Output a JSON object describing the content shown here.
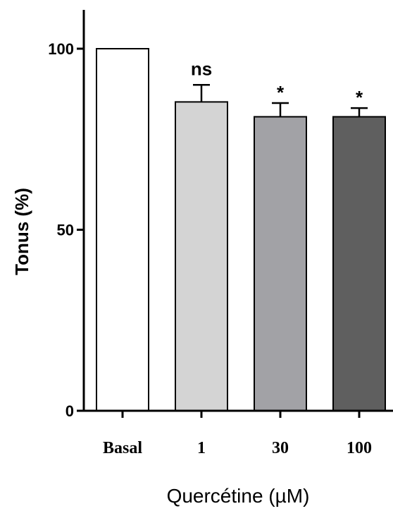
{
  "chart_data": {
    "type": "bar",
    "xlabel": "Quercétine (µM)",
    "ylabel": "Tonus (%)",
    "ylim": [
      0,
      110
    ],
    "yticks": [
      0,
      50,
      100
    ],
    "categories": [
      "Basal",
      "1",
      "30",
      "100"
    ],
    "values": [
      100,
      85.3,
      81.2,
      81.2
    ],
    "errors": [
      0,
      4.7,
      3.8,
      2.4
    ],
    "significance": [
      "",
      "ns",
      "*",
      "*"
    ],
    "colors": [
      "#ffffff",
      "#d4d4d4",
      "#a2a2a6",
      "#5f5f5f"
    ],
    "grid": false,
    "legend": "none"
  }
}
